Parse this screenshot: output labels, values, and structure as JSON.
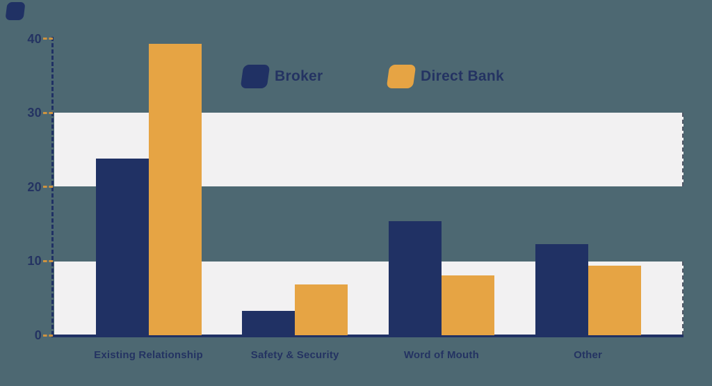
{
  "page": {
    "background_color": "#4d6872",
    "stripe_color": "#f2f1f2",
    "axis_color": "#203164",
    "tick_color": "#cf9340",
    "text_color": "#243362"
  },
  "brand_mark": {
    "color": "#203164"
  },
  "legend": {
    "items": [
      {
        "label": "Broker",
        "color": "#203164",
        "x": 348
      },
      {
        "label": "Direct Bank",
        "color": "#e6a444",
        "x": 558
      }
    ]
  },
  "chart_data": {
    "type": "bar",
    "title": "",
    "categories": [
      "Existing Relationship",
      "Safety & Security",
      "Word of Mouth",
      "Other"
    ],
    "series": [
      {
        "name": "Broker",
        "color": "#203164",
        "values": [
          23.8,
          3.3,
          15.4,
          12.3
        ]
      },
      {
        "name": "Direct Bank",
        "color": "#e6a444",
        "values": [
          39.3,
          6.8,
          8.1,
          9.4
        ]
      }
    ],
    "ylim": [
      0,
      40
    ],
    "yticks": [
      0,
      10,
      20,
      30,
      40
    ],
    "xlabel": "",
    "ylabel": "",
    "grid": "light horizontal bands covering value ranges 0-10 and 20-30",
    "legend_position": "top-center",
    "axis_style": "dashed navy y-axis, solid navy x-axis, orange dashed tick marks"
  }
}
